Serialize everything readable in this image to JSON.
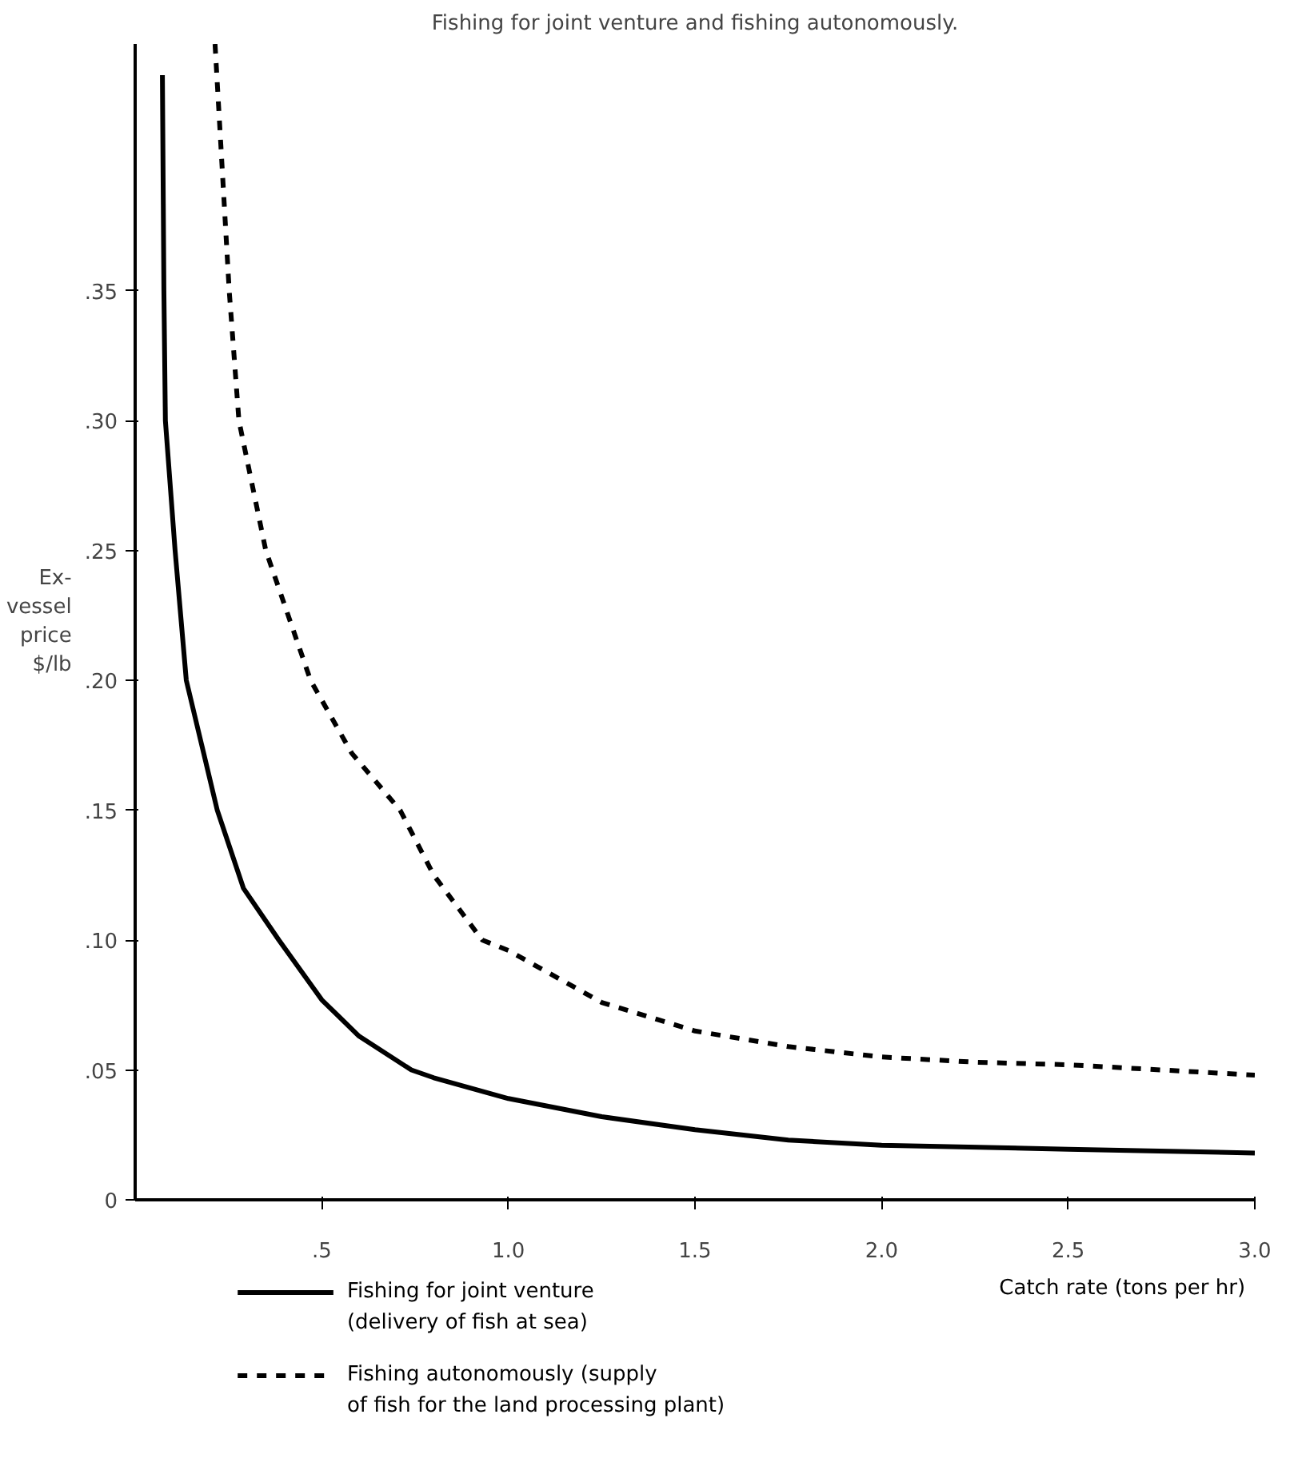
{
  "chart_data": {
    "type": "line",
    "title": "Fishing for joint venture and fishing autonomously.",
    "xlabel": "Catch rate (tons per hr)",
    "ylabel": "Ex-\nvessel\nprice\n$/lb",
    "xlim": [
      0,
      3.0
    ],
    "ylim": [
      0,
      0.445
    ],
    "xticks": [
      {
        "value": 0.5,
        "label": ".5"
      },
      {
        "value": 1,
        "label": "1.0"
      },
      1.5,
      {
        "value": 2,
        "label": "2.0"
      },
      2.5,
      {
        "value": 3,
        "label": "3.0"
      }
    ],
    "yticks": [
      0,
      {
        "value": 0.05,
        "label": ".05"
      },
      {
        "value": 0.1,
        "label": ".10"
      },
      {
        "value": 0.15,
        "label": ".15"
      },
      {
        "value": 0.2,
        "label": ".20"
      },
      {
        "value": 0.25,
        "label": ".25"
      },
      {
        "value": 0.3,
        "label": ".30"
      },
      {
        "value": 0.35,
        "label": ".35"
      }
    ],
    "grid": false,
    "legend": "bottom left",
    "series": [
      {
        "name": "Fishing for joint venture\n(delivery of fish at sea)",
        "color": "#000000",
        "line_style": "solid",
        "x": [
          0.073,
          0.077,
          0.081,
          0.107,
          0.137,
          0.22,
          0.29,
          0.385,
          0.5,
          0.6,
          0.74,
          0.8,
          1.0,
          1.25,
          1.5,
          1.75,
          2.0,
          2.5,
          3.0
        ],
        "values": [
          0.433,
          0.35,
          0.3,
          0.25,
          0.2,
          0.15,
          0.12,
          0.1,
          0.077,
          0.063,
          0.05,
          0.047,
          0.039,
          0.032,
          0.027,
          0.023,
          0.021,
          0.0195,
          0.018
        ]
      },
      {
        "name": "Fishing autonomously (supply\nof fish for the land processing plant)",
        "color": "#000000",
        "line_style": "dashed",
        "x": [
          0.214,
          0.252,
          0.278,
          0.35,
          0.47,
          0.58,
          0.71,
          0.8,
          0.93,
          1.0,
          1.25,
          1.5,
          1.75,
          2.0,
          2.25,
          2.5,
          3.0
        ],
        "values": [
          0.445,
          0.35,
          0.3,
          0.25,
          0.2,
          0.172,
          0.15,
          0.125,
          0.1,
          0.096,
          0.076,
          0.065,
          0.059,
          0.055,
          0.053,
          0.052,
          0.048
        ]
      }
    ]
  }
}
